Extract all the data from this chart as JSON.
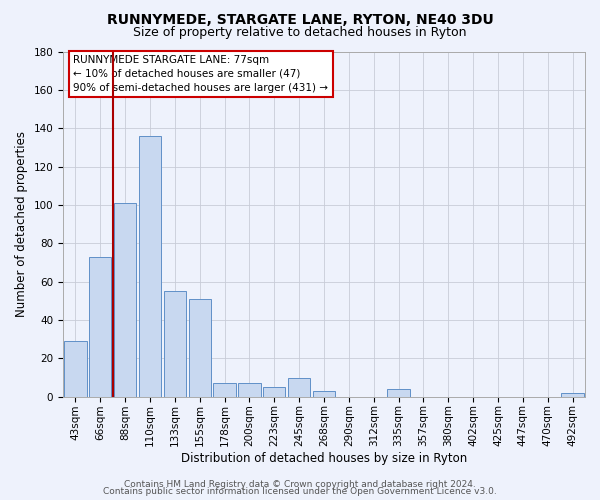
{
  "title": "RUNNYMEDE, STARGATE LANE, RYTON, NE40 3DU",
  "subtitle": "Size of property relative to detached houses in Ryton",
  "xlabel": "Distribution of detached houses by size in Ryton",
  "ylabel": "Number of detached properties",
  "bar_labels": [
    "43sqm",
    "66sqm",
    "88sqm",
    "110sqm",
    "133sqm",
    "155sqm",
    "178sqm",
    "200sqm",
    "223sqm",
    "245sqm",
    "268sqm",
    "290sqm",
    "312sqm",
    "335sqm",
    "357sqm",
    "380sqm",
    "402sqm",
    "425sqm",
    "447sqm",
    "470sqm",
    "492sqm"
  ],
  "bar_values": [
    29,
    73,
    101,
    136,
    55,
    51,
    7,
    7,
    5,
    10,
    3,
    0,
    0,
    4,
    0,
    0,
    0,
    0,
    0,
    0,
    2
  ],
  "bar_color": "#c8d8f0",
  "bar_edgecolor": "#6090c8",
  "ylim": [
    0,
    180
  ],
  "yticks": [
    0,
    20,
    40,
    60,
    80,
    100,
    120,
    140,
    160,
    180
  ],
  "property_line_x": 1.5,
  "property_line_color": "#aa0000",
  "annotation_box_text": "RUNNYMEDE STARGATE LANE: 77sqm\n← 10% of detached houses are smaller (47)\n90% of semi-detached houses are larger (431) →",
  "footer_line1": "Contains HM Land Registry data © Crown copyright and database right 2024.",
  "footer_line2": "Contains public sector information licensed under the Open Government Licence v3.0.",
  "background_color": "#eef2fc",
  "grid_color": "#c8ccd8",
  "title_fontsize": 10,
  "subtitle_fontsize": 9,
  "label_fontsize": 8.5,
  "tick_fontsize": 7.5,
  "annotation_fontsize": 7.5,
  "footer_fontsize": 6.5
}
